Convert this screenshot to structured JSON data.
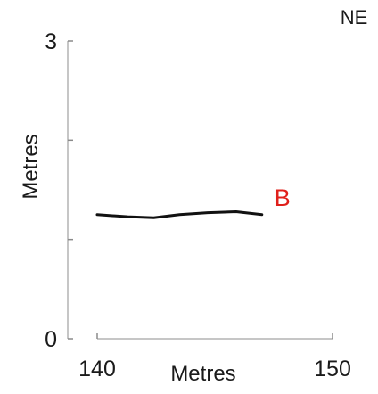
{
  "corner_label": "NE",
  "chart_data": {
    "type": "line",
    "xlabel": "Metres",
    "ylabel": "Metres",
    "xlim": [
      140,
      150
    ],
    "ylim": [
      0,
      3
    ],
    "x_ticks": [
      140,
      150
    ],
    "x_tick_labels": [
      "140",
      "150"
    ],
    "y_ticks": [
      0,
      1,
      2,
      3
    ],
    "y_tick_labels": [
      "0",
      "",
      "",
      "3"
    ],
    "grid": false,
    "series": [
      {
        "name": "B",
        "label_color": "#e0201b",
        "line_color": "#111111",
        "x": [
          140,
          141.3,
          142.4,
          143.5,
          144.7,
          145.9,
          147.0
        ],
        "y": [
          1.25,
          1.23,
          1.22,
          1.25,
          1.27,
          1.28,
          1.25
        ]
      }
    ]
  }
}
